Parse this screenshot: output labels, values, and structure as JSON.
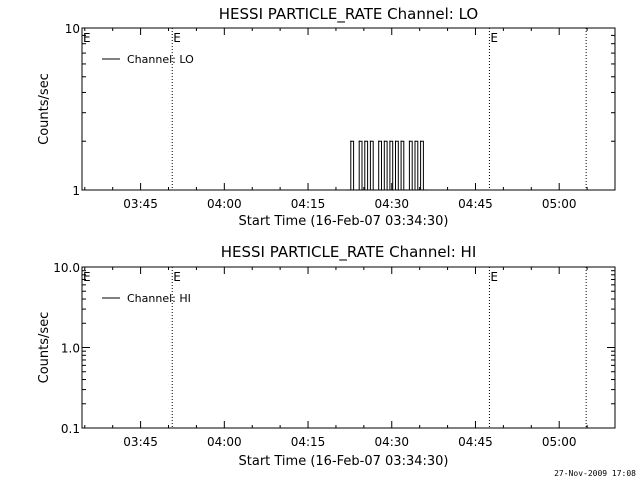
{
  "chart_data": [
    {
      "type": "line",
      "title": "HESSI PARTICLE_RATE Channel: LO",
      "xlabel": "Start Time (16-Feb-07 03:34:30)",
      "ylabel": "Counts/sec",
      "y_scale": "log",
      "ylim": [
        1,
        10
      ],
      "y_ticks": [
        {
          "value": 1,
          "label": "1"
        },
        {
          "value": 10,
          "label": "10"
        }
      ],
      "xlim": [
        "03:34:30",
        "05:10:00"
      ],
      "x_ticks": [
        "03:45",
        "04:00",
        "04:15",
        "04:30",
        "04:45",
        "05:00"
      ],
      "legend": {
        "placement": "top-left",
        "entries": [
          "Channel: LO"
        ]
      },
      "event_markers": [
        {
          "time": "03:50:40",
          "label": "E"
        },
        {
          "time": "04:47:30",
          "label": "E"
        },
        {
          "time": "05:04:50",
          "label": ""
        }
      ],
      "series": [
        {
          "name": "Channel: LO",
          "x": [
            "04:22:10",
            "04:22:40",
            "04:23:10",
            "04:23:40",
            "04:24:10",
            "04:24:40",
            "04:25:10",
            "04:25:40",
            "04:26:10",
            "04:26:40",
            "04:27:10",
            "04:27:40",
            "04:28:10",
            "04:28:40",
            "04:29:10",
            "04:29:40",
            "04:30:10",
            "04:30:40",
            "04:31:10",
            "04:31:40",
            "04:32:10",
            "04:32:40",
            "04:33:10",
            "04:33:40",
            "04:34:10",
            "04:34:40",
            "04:35:10",
            "04:35:40",
            "04:36:10"
          ],
          "values": [
            1,
            2,
            1,
            1,
            2,
            1,
            2,
            1,
            2,
            1,
            1,
            2,
            1,
            2,
            1,
            2,
            1,
            2,
            1,
            2,
            1,
            1,
            2,
            1,
            2,
            1,
            2,
            1,
            1
          ]
        }
      ]
    },
    {
      "type": "line",
      "title": "HESSI PARTICLE_RATE Channel: HI",
      "xlabel": "Start Time (16-Feb-07 03:34:30)",
      "ylabel": "Counts/sec",
      "y_scale": "log",
      "ylim": [
        0.1,
        10
      ],
      "y_ticks": [
        {
          "value": 0.1,
          "label": "0.1"
        },
        {
          "value": 1,
          "label": "1.0"
        },
        {
          "value": 10,
          "label": "10.0"
        }
      ],
      "xlim": [
        "03:34:30",
        "05:10:00"
      ],
      "x_ticks": [
        "03:45",
        "04:00",
        "04:15",
        "04:30",
        "04:45",
        "05:00"
      ],
      "legend": {
        "placement": "top-left",
        "entries": [
          "Channel: HI"
        ]
      },
      "event_markers": [
        {
          "time": "03:50:40",
          "label": "E"
        },
        {
          "time": "04:47:30",
          "label": "E"
        },
        {
          "time": "05:04:50",
          "label": ""
        }
      ],
      "series": [
        {
          "name": "Channel: HI",
          "x": [],
          "values": []
        }
      ]
    }
  ],
  "footer": {
    "timestamp": "27-Nov-2009 17:08"
  }
}
